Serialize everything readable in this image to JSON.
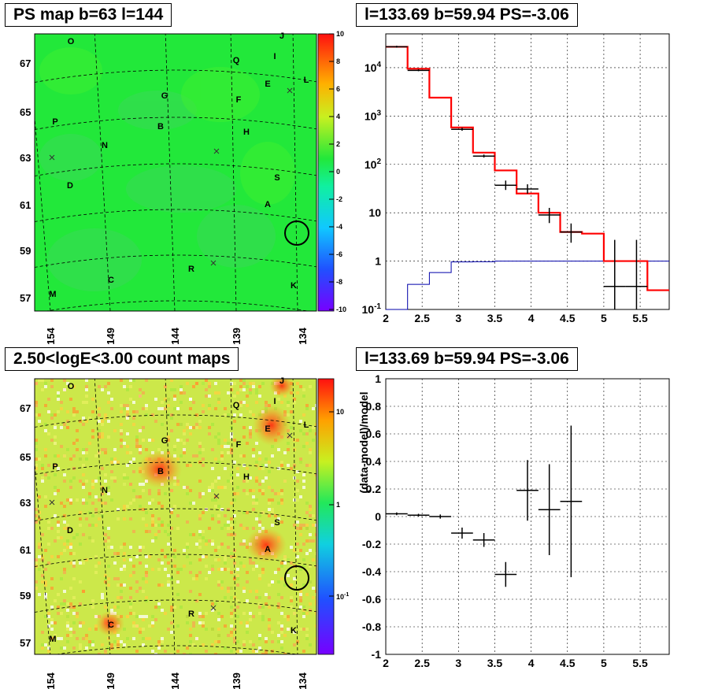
{
  "titles": {
    "ps_map": "PS map b=63 l=144",
    "spectrum": "l=133.69 b=59.94 PS=-3.06",
    "count_map": "2.50<logE<3.00 count maps",
    "residual": "l=133.69 b=59.94 PS=-3.06"
  },
  "colors": {
    "ps_map_background": "#22e83a",
    "count_map_background": "#cce84a",
    "model": "#ff0000",
    "ratio": "#0000aa",
    "data": "#000000"
  },
  "sky_maps": {
    "x_ticks": [
      "154",
      "149",
      "144",
      "139",
      "134"
    ],
    "y_ticks": [
      "67",
      "65",
      "63",
      "61",
      "59",
      "57"
    ],
    "sources": [
      "O",
      "J",
      "Q",
      "I",
      "L",
      "E",
      "G",
      "F",
      "P",
      "B",
      "H",
      "N",
      "S",
      "D",
      "A",
      "R",
      "C",
      "K",
      "M"
    ],
    "ps_colorbar_ticks": [
      "10",
      "8",
      "6",
      "4",
      "2",
      "0",
      "-2",
      "-4",
      "-6",
      "-8",
      "-10"
    ],
    "count_colorbar_ticks": [
      "10",
      "1",
      "10-1"
    ]
  },
  "chart_data": [
    {
      "type": "line",
      "title": "l=133.69 b=59.94 PS=-3.06",
      "xlabel": "",
      "ylabel": "",
      "log_y": true,
      "xlim": [
        2,
        5.9
      ],
      "ylim": [
        0.1,
        50000
      ],
      "grid": true,
      "x_ticks": [
        "2",
        "2.5",
        "3",
        "3.5",
        "4",
        "4.5",
        "5",
        "5.5"
      ],
      "y_ticks": [
        {
          "v": 10000,
          "base": "10",
          "exp": "4"
        },
        {
          "v": 1000,
          "base": "10",
          "exp": "3"
        },
        {
          "v": 100,
          "base": "10",
          "exp": "2"
        },
        {
          "v": 10,
          "base": "10",
          "exp": ""
        },
        {
          "v": 1,
          "base": "1",
          "exp": ""
        },
        {
          "v": 0.1,
          "base": "10",
          "exp": "-1"
        }
      ],
      "bin_edges": [
        2.0,
        2.3,
        2.6,
        2.9,
        3.2,
        3.5,
        3.8,
        4.1,
        4.4,
        4.7,
        5.0,
        5.3,
        5.6,
        5.9
      ],
      "series": [
        {
          "values": [
            27000,
            9500,
            2400,
            580,
            175,
            75,
            25,
            10,
            4,
            3.7,
            1,
            1,
            0.25
          ]
        },
        {
          "values": [
            27000,
            8800,
            null,
            530,
            148,
            37,
            31,
            9,
            4,
            null,
            0.3,
            0.3,
            null
          ]
        },
        {
          "values": [
            0.1,
            0.33,
            0.58,
            0.96,
            0.97,
            1,
            1,
            1,
            1,
            1,
            1,
            1,
            1
          ]
        }
      ]
    },
    {
      "type": "scatter",
      "title": "l=133.69 b=59.94 PS=-3.06",
      "xlabel": "",
      "ylabel": "(data-model)/model",
      "xlim": [
        2,
        5.9
      ],
      "ylim": [
        -1,
        1
      ],
      "grid": true,
      "x_ticks": [
        "2",
        "2.5",
        "3",
        "3.5",
        "4",
        "4.5",
        "5",
        "5.5"
      ],
      "y_ticks": [
        "1",
        "0.8",
        "0.6",
        "0.4",
        "0.2",
        "0",
        "-0.2",
        "-0.4",
        "-0.6",
        "-0.8",
        "-1"
      ],
      "points": [
        {
          "x": 2.15,
          "y": 0.02,
          "xerr": 0.15,
          "yerr": 0.01
        },
        {
          "x": 2.45,
          "y": 0.01,
          "xerr": 0.15,
          "yerr": 0.01
        },
        {
          "x": 2.75,
          "y": 0,
          "xerr": 0.15,
          "yerr": 0.015
        },
        {
          "x": 3.05,
          "y": -0.12,
          "xerr": 0.15,
          "yerr": 0.04
        },
        {
          "x": 3.35,
          "y": -0.17,
          "xerr": 0.15,
          "yerr": 0.05
        },
        {
          "x": 3.65,
          "y": -0.42,
          "xerr": 0.15,
          "yerr": 0.09
        },
        {
          "x": 3.95,
          "y": 0.19,
          "xerr": 0.15,
          "yerr": 0.22
        },
        {
          "x": 4.25,
          "y": 0.05,
          "xerr": 0.15,
          "yerr": 0.33
        },
        {
          "x": 4.55,
          "y": 0.11,
          "xerr": 0.15,
          "yerr": 0.55
        }
      ]
    }
  ]
}
